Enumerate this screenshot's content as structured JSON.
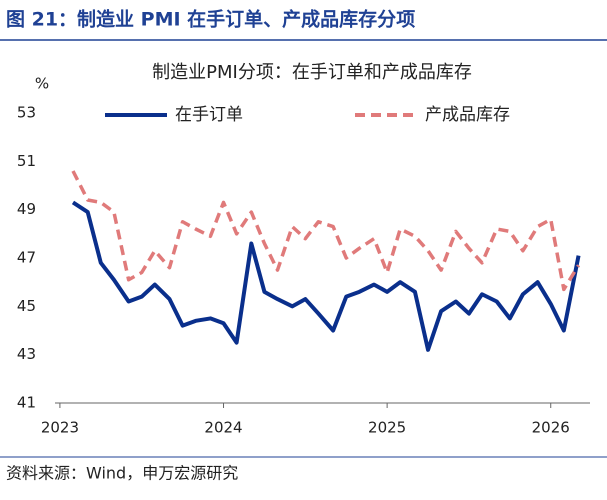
{
  "header": {
    "title": "图 21：制造业 PMI 在手订单、产成品库存分项"
  },
  "chart_data": {
    "type": "line",
    "title": "制造业PMI分项：在手订单和产成品库存",
    "y_unit": "%",
    "x": [
      2023.08,
      2023.17,
      2023.25,
      2023.33,
      2023.42,
      2023.5,
      2023.58,
      2023.67,
      2023.75,
      2023.83,
      2023.92,
      2024.0,
      2024.08,
      2024.17,
      2024.25,
      2024.33,
      2024.42,
      2024.5,
      2024.58,
      2024.67,
      2024.75,
      2024.83,
      2024.92,
      2025.0,
      2025.08,
      2025.17,
      2025.25,
      2025.33,
      2025.42,
      2025.5,
      2025.58,
      2025.67,
      2025.75,
      2025.83,
      2025.92,
      2026.0,
      2026.08,
      2026.17
    ],
    "xlim": [
      2022.97,
      2026.24
    ],
    "xticks": [
      2023,
      2024,
      2025,
      2026
    ],
    "ylim": [
      41,
      53
    ],
    "yticks": [
      41,
      43,
      45,
      47,
      49,
      51,
      53
    ],
    "series": [
      {
        "name": "在手订单",
        "color": "#0a2f8c",
        "dash": false,
        "values": [
          49.3,
          48.9,
          46.8,
          46.1,
          45.2,
          45.4,
          45.9,
          45.3,
          44.2,
          44.4,
          44.5,
          44.3,
          43.5,
          47.6,
          45.6,
          45.3,
          45.0,
          45.3,
          44.7,
          44.0,
          45.4,
          45.6,
          45.9,
          45.6,
          46.0,
          45.6,
          43.2,
          44.8,
          45.2,
          44.7,
          45.5,
          45.2,
          44.5,
          45.5,
          46.0,
          45.1,
          44.0,
          47.1
        ]
      },
      {
        "name": "产成品库存",
        "color": "#e07a7a",
        "dash": true,
        "values": [
          50.6,
          49.4,
          49.3,
          48.9,
          46.1,
          46.4,
          47.3,
          46.6,
          48.5,
          48.2,
          47.9,
          49.3,
          48.0,
          48.9,
          47.6,
          46.5,
          48.3,
          47.8,
          48.5,
          48.3,
          47.0,
          47.4,
          47.8,
          46.4,
          48.2,
          47.9,
          47.3,
          46.5,
          48.1,
          47.4,
          46.8,
          48.2,
          48.1,
          47.3,
          48.3,
          48.6,
          45.7,
          46.7
        ]
      }
    ]
  },
  "footer": {
    "source": "资料来源：Wind，申万宏源研究"
  }
}
